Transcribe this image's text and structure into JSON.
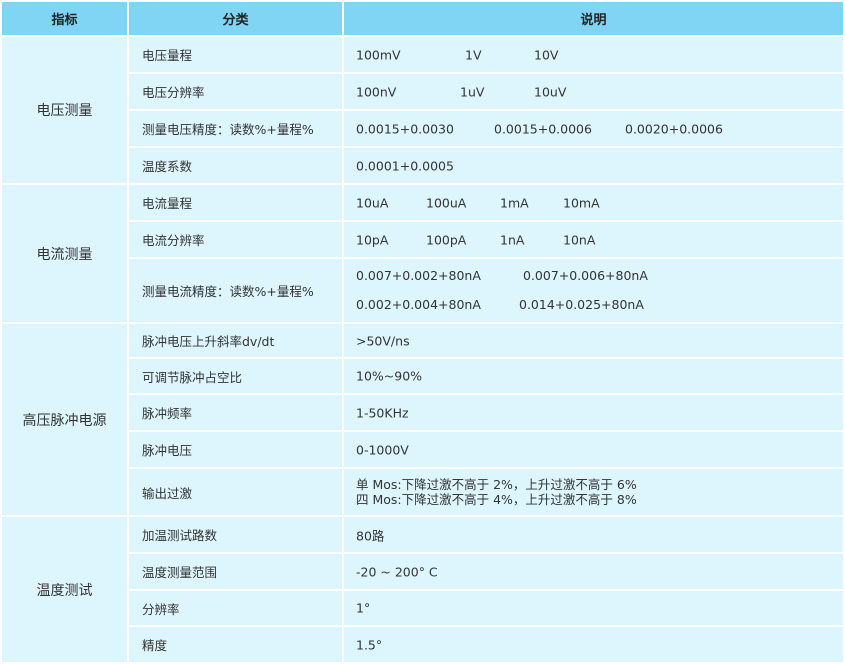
{
  "header": {
    "indicator": "指标",
    "category": "分类",
    "description": "说明"
  },
  "groups": {
    "voltage": {
      "name": "电压测量",
      "rows": [
        {
          "category": "电压量程",
          "values": [
            "100mV",
            "1V",
            "10V"
          ]
        },
        {
          "category": "电压分辨率",
          "values": [
            "100nV",
            "1uV",
            "10uV"
          ]
        },
        {
          "category": "测量电压精度：读数%+量程%",
          "values": [
            "0.0015+0.0030",
            "0.0015+0.0006",
            "0.0020+0.0006"
          ]
        },
        {
          "category": "温度系数",
          "values": [
            "0.0001+0.0005"
          ]
        }
      ]
    },
    "current": {
      "name": "电流测量",
      "rows": [
        {
          "category": "电流量程",
          "values": [
            "10uA",
            "100uA",
            "1mA",
            "10mA"
          ]
        },
        {
          "category": "电流分辨率",
          "values": [
            "10pA",
            "100pA",
            "1nA",
            "10nA"
          ]
        },
        {
          "category": "测量电流精度：读数%+量程%",
          "values": [
            "0.007+0.002+80nA",
            "0.007+0.006+80nA",
            "0.002+0.004+80nA",
            "0.014+0.025+80nA"
          ]
        }
      ]
    },
    "pulse": {
      "name": "高压脉冲电源",
      "rows": [
        {
          "category": "脉冲电压上升斜率dv/dt",
          "values": [
            ">50V/ns"
          ]
        },
        {
          "category": "可调节脉冲占空比",
          "values": [
            "10%~90%"
          ]
        },
        {
          "category": "脉冲频率",
          "values": [
            "1-50KHz"
          ]
        },
        {
          "category": "脉冲电压",
          "values": [
            "0-1000V"
          ]
        },
        {
          "category": "输出过激",
          "values": [
            "单 Mos:下降过激不高于 2%，上升过激不高于 6%",
            "四 Mos:下降过激不高于 4%，上升过激不高于 8%"
          ]
        }
      ]
    },
    "temperature": {
      "name": "温度测试",
      "rows": [
        {
          "category": "加温测试路数",
          "values": [
            "80路"
          ]
        },
        {
          "category": "温度测量范围",
          "values": [
            "-20 ~ 200° C"
          ]
        },
        {
          "category": "分辨率",
          "values": [
            "1°"
          ]
        },
        {
          "category": "精度",
          "values": [
            "1.5°"
          ]
        }
      ]
    }
  }
}
